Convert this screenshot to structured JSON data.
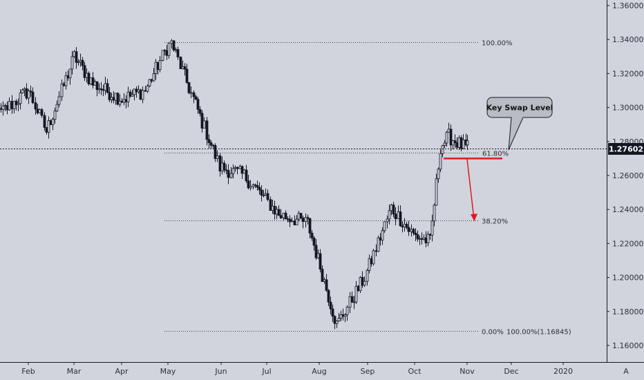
{
  "chart_data": {
    "type": "candlestick",
    "ylim": [
      1.155,
      1.365
    ],
    "y_ticks": [
      "1.36000",
      "1.34000",
      "1.32000",
      "1.30000",
      "1.28000",
      "1.26000",
      "1.24000",
      "1.22000",
      "1.20000",
      "1.18000",
      "1.16000"
    ],
    "x_labels": [
      "Feb",
      "Mar",
      "Apr",
      "May",
      "Jun",
      "Jul",
      "Aug",
      "Sep",
      "Oct",
      "Nov",
      "Dec",
      "2020"
    ],
    "current_price": "1.27602",
    "axis_mode_label": "A",
    "key_points": [
      {
        "date": "Jan 14",
        "close": 1.288
      },
      {
        "date": "Feb 1",
        "close": 1.31
      },
      {
        "date": "Feb 12",
        "close": 1.286
      },
      {
        "date": "Mar 1",
        "close": 1.33
      },
      {
        "date": "Mar 13",
        "close": 1.314
      },
      {
        "date": "Apr 1",
        "close": 1.305
      },
      {
        "date": "Apr 16",
        "close": 1.31
      },
      {
        "date": "Apr 30",
        "close": 1.335
      },
      {
        "date": "May 3",
        "close": 1.338
      },
      {
        "date": "May 31",
        "close": 1.265
      },
      {
        "date": "Jun 16",
        "close": 1.26
      },
      {
        "date": "Jul 8",
        "close": 1.237
      },
      {
        "date": "Jul 25",
        "close": 1.232
      },
      {
        "date": "Aug 12",
        "close": 1.172
      },
      {
        "date": "Aug 30",
        "close": 1.2
      },
      {
        "date": "Sep 16",
        "close": 1.241
      },
      {
        "date": "Sep 30",
        "close": 1.225
      },
      {
        "date": "Oct 10",
        "close": 1.221
      },
      {
        "date": "Oct 16",
        "close": 1.277
      },
      {
        "date": "Oct 21",
        "close": 1.283
      },
      {
        "date": "Oct 31",
        "close": 1.276
      },
      {
        "date": "Nov 1",
        "close": 1.27602
      }
    ],
    "fib_levels": [
      {
        "label": "100.00%",
        "price": 1.3385
      },
      {
        "label": "61.80%",
        "price": 1.2735
      },
      {
        "label": "38.20%",
        "price": 1.2335
      },
      {
        "label": "0.00%",
        "price": 1.16845,
        "extra": "100.00%(1.16845)"
      }
    ],
    "annotations": {
      "key_swap_level_text": "Key Swap Level",
      "key_swap_price": 1.27,
      "arrow_target_price": 1.2335
    },
    "colors": {
      "background": "#d1d4dc",
      "candle": "#131722",
      "price_line": "#131722",
      "price_label_bg": "#131722",
      "key_level": "#e0191c",
      "callout_fill": "#b9bcc4"
    },
    "grid": false
  }
}
